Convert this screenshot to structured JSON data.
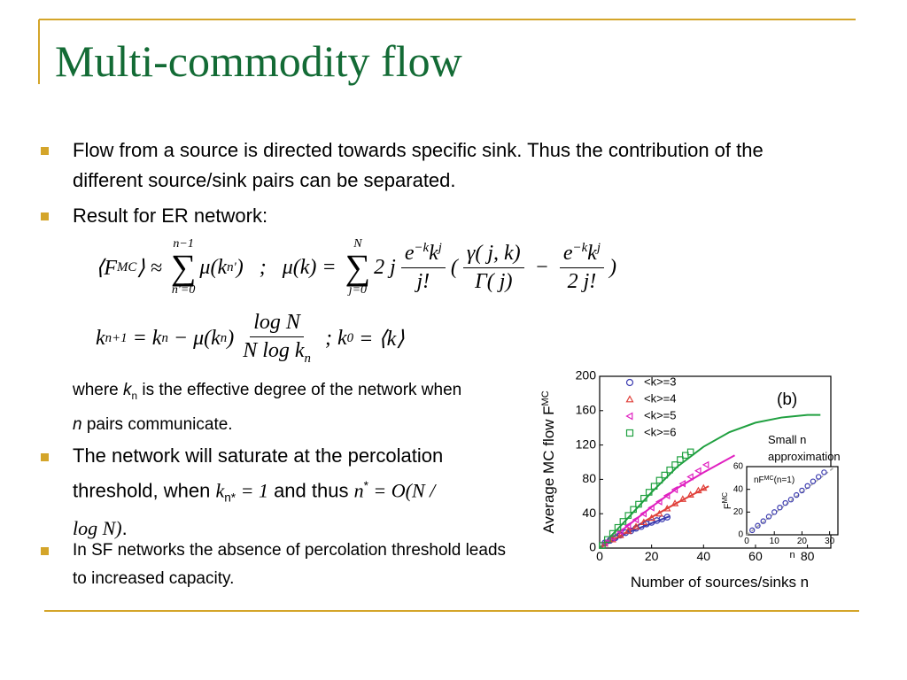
{
  "title": "Multi-commodity flow",
  "bullet1": "Flow from a source is directed towards specific sink. Thus the contribution of the different source/sink pairs can be separated.",
  "bullet2": "Result for ER network:",
  "eq1": [
    "⟨F",
    {
      "sub": "MC"
    },
    "⟩ ≈ ",
    {
      "sum": {
        "symbol": "∑",
        "over": "n−1",
        "under": "n'=0"
      }
    },
    "μ(k",
    {
      "sub": "n'"
    },
    ")",
    "   ;   ",
    "μ(k) = ",
    {
      "sum": {
        "symbol": "∑",
        "over": "N",
        "under": "j=0"
      }
    },
    "2 j",
    {
      "frac": {
        "num": [
          "e",
          {
            "sup": "−k"
          },
          "k",
          {
            "sup": "j"
          }
        ],
        "den": [
          "j!"
        ]
      }
    },
    "(",
    {
      "frac": {
        "num": [
          "γ( j, k)"
        ],
        "den": [
          "Γ( j)"
        ]
      }
    },
    " − ",
    {
      "frac": {
        "num": [
          "e",
          {
            "sup": "−k"
          },
          "k",
          {
            "sup": "j"
          }
        ],
        "den": [
          "2 j!"
        ]
      }
    },
    ")"
  ],
  "eq2": [
    "k",
    {
      "sub": "n+1"
    },
    " = k",
    {
      "sub": "n"
    },
    " − μ(k",
    {
      "sub": "n"
    },
    ")",
    {
      "frac": {
        "num": [
          "log N"
        ],
        "den": [
          "N log k",
          {
            "sub": "n"
          }
        ]
      }
    },
    " ; k",
    {
      "sub": "0"
    },
    " = ⟨k⟩"
  ],
  "where": [
    "where ",
    {
      "i": "k"
    },
    {
      "sub": "n"
    },
    " is the effective degree of the network when ",
    {
      "i": "n"
    },
    " pairs communicate."
  ],
  "bullet3": [
    "The network will saturate at the percolation threshold, when ",
    {
      "m": "k"
    },
    {
      "sub": "n*"
    },
    {
      "m": " = 1"
    },
    " and thus ",
    {
      "m": "n"
    },
    {
      "sup": "*"
    },
    {
      "m": " = O(N / log N)"
    },
    "."
  ],
  "bullet4": "In SF networks the absence of percolation threshold leads to increased capacity.",
  "chart_data": [
    {
      "type": "scatter",
      "xlabel": "Number of sources/sinks n",
      "ylabel": "Average MC flow F",
      "ylabel_superscript": "MC",
      "panel_label": "(b)",
      "annotation": [
        "Small n",
        "approximation"
      ],
      "xlim": [
        0,
        89
      ],
      "ylim": [
        0,
        200
      ],
      "xticks": [
        0,
        20,
        40,
        60,
        80
      ],
      "yticks": [
        0,
        40,
        80,
        120,
        160,
        200
      ],
      "series": [
        {
          "name": "<k>=3",
          "color": "#3b3bb0",
          "marker": "circle",
          "x": [
            2,
            4,
            6,
            8,
            10,
            12,
            14,
            16,
            18,
            20,
            22,
            24,
            26
          ],
          "values": [
            6,
            9,
            12,
            15,
            18,
            20,
            23,
            25,
            28,
            30,
            32,
            34,
            36
          ]
        },
        {
          "name": "<k>=4",
          "color": "#e0403a",
          "marker": "triangle-up",
          "x": [
            2,
            5,
            8,
            11,
            14,
            17,
            20,
            23,
            26,
            29,
            32,
            35,
            38,
            40
          ],
          "values": [
            5,
            10,
            15,
            20,
            25,
            30,
            35,
            40,
            46,
            52,
            57,
            62,
            67,
            70
          ]
        },
        {
          "name": "<k>=5",
          "color": "#e020c0",
          "marker": "triangle-left",
          "x": [
            2,
            5,
            8,
            11,
            14,
            17,
            20,
            23,
            26,
            29,
            32,
            35,
            38,
            41
          ],
          "values": [
            6,
            12,
            19,
            26,
            33,
            40,
            47,
            54,
            61,
            68,
            75,
            83,
            90,
            97
          ]
        },
        {
          "name": "<k>=6",
          "color": "#20a040",
          "marker": "square",
          "x": [
            1,
            3,
            5,
            7,
            9,
            11,
            13,
            15,
            17,
            19,
            21,
            23,
            25,
            27,
            29,
            31,
            33,
            35
          ],
          "values": [
            3,
            10,
            17,
            24,
            31,
            38,
            45,
            51,
            58,
            65,
            72,
            79,
            85,
            91,
            97,
            103,
            108,
            112
          ]
        }
      ],
      "fits": [
        {
          "color": "#3b3bb0",
          "x": [
            0,
            10,
            20,
            27
          ],
          "values": [
            0,
            17,
            29,
            37
          ]
        },
        {
          "color": "#e0403a",
          "x": [
            0,
            10,
            20,
            30,
            42
          ],
          "values": [
            0,
            18,
            36,
            53,
            72
          ]
        },
        {
          "color": "#e020c0",
          "x": [
            0,
            10,
            20,
            30,
            40,
            52
          ],
          "values": [
            0,
            24,
            48,
            70,
            88,
            108
          ]
        },
        {
          "color": "#20a040",
          "x": [
            0,
            10,
            20,
            30,
            40,
            50,
            60,
            70,
            80,
            85
          ],
          "values": [
            0,
            32,
            65,
            95,
            118,
            135,
            146,
            152,
            155,
            155
          ]
        }
      ]
    },
    {
      "type": "scatter",
      "xlabel": "n",
      "ylabel": "F",
      "ylabel_superscript": "MC",
      "xlim": [
        0,
        33
      ],
      "ylim": [
        0,
        60
      ],
      "xticks": [
        0,
        10,
        20,
        30
      ],
      "yticks": [
        0,
        20,
        40,
        60
      ],
      "series": [
        {
          "color": "#3b3bb0",
          "marker": "circle",
          "x": [
            2,
            4,
            6,
            8,
            10,
            12,
            14,
            16,
            18,
            20,
            22,
            24,
            26,
            28
          ],
          "values": [
            4,
            8,
            12,
            16,
            20,
            24,
            28,
            31,
            35,
            39,
            43,
            47,
            51,
            55
          ]
        }
      ],
      "reference": {
        "name": "nF",
        "name_superscript": "MC",
        "name_suffix": "(n=1)",
        "color": "#aaaaaa",
        "x": [
          0,
          32
        ],
        "values": [
          0,
          65
        ]
      }
    }
  ]
}
